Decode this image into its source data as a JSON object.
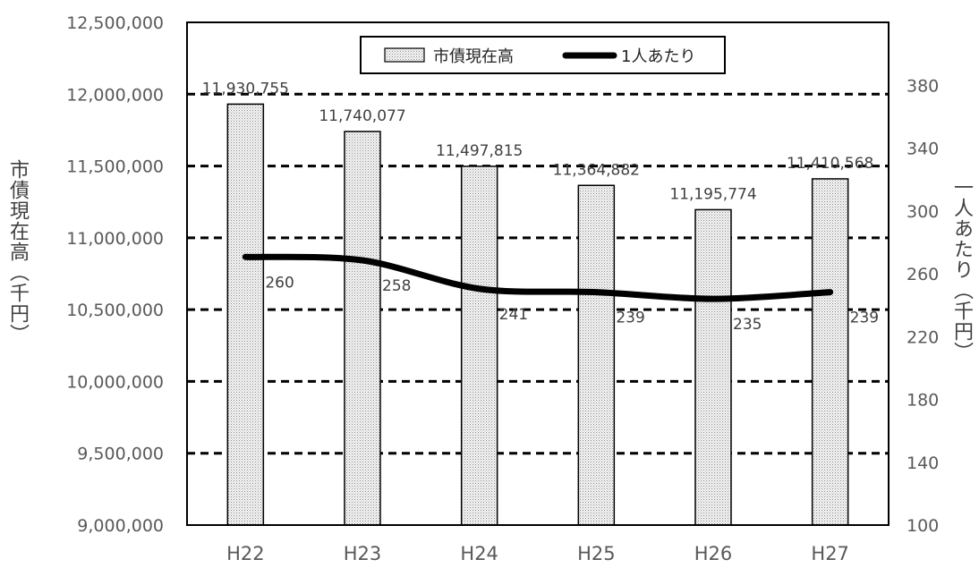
{
  "chart_data": {
    "type": "bar",
    "categories": [
      "H22",
      "H23",
      "H24",
      "H25",
      "H26",
      "H27"
    ],
    "series": [
      {
        "name": "市債現在高",
        "type": "bar",
        "axis": "left",
        "values": [
          11930755,
          11740077,
          11497815,
          11364882,
          11195774,
          11410568
        ],
        "labels": [
          "11,930,755",
          "11,740,077",
          "11,497,815",
          "11,364,882",
          "11,195,774",
          "11,410,568"
        ]
      },
      {
        "name": "1人あたり",
        "type": "line",
        "axis": "right",
        "values": [
          260,
          258,
          241,
          239,
          235,
          239
        ],
        "labels": [
          "260",
          "258",
          "241",
          "239",
          "235",
          "239"
        ]
      }
    ],
    "ylabel": "市債現在高（千円）",
    "y2label": "一人あたり（千円）",
    "ylim": [
      9000000,
      12500000
    ],
    "y2lim": [
      100,
      400
    ],
    "yticks": [
      "9,000,000",
      "9,500,000",
      "10,000,000",
      "10,500,000",
      "11,000,000",
      "11,500,000",
      "12,000,000",
      "12,500,000"
    ],
    "y2ticks": [
      "100",
      "140",
      "180",
      "220",
      "260",
      "300",
      "340",
      "380"
    ],
    "grid": true,
    "legend_position": "top-center",
    "colors": {
      "bar_fill": "#f2f2f2",
      "bar_dots": "#8c8c8c",
      "line": "#000000",
      "grid": "#000000"
    }
  }
}
